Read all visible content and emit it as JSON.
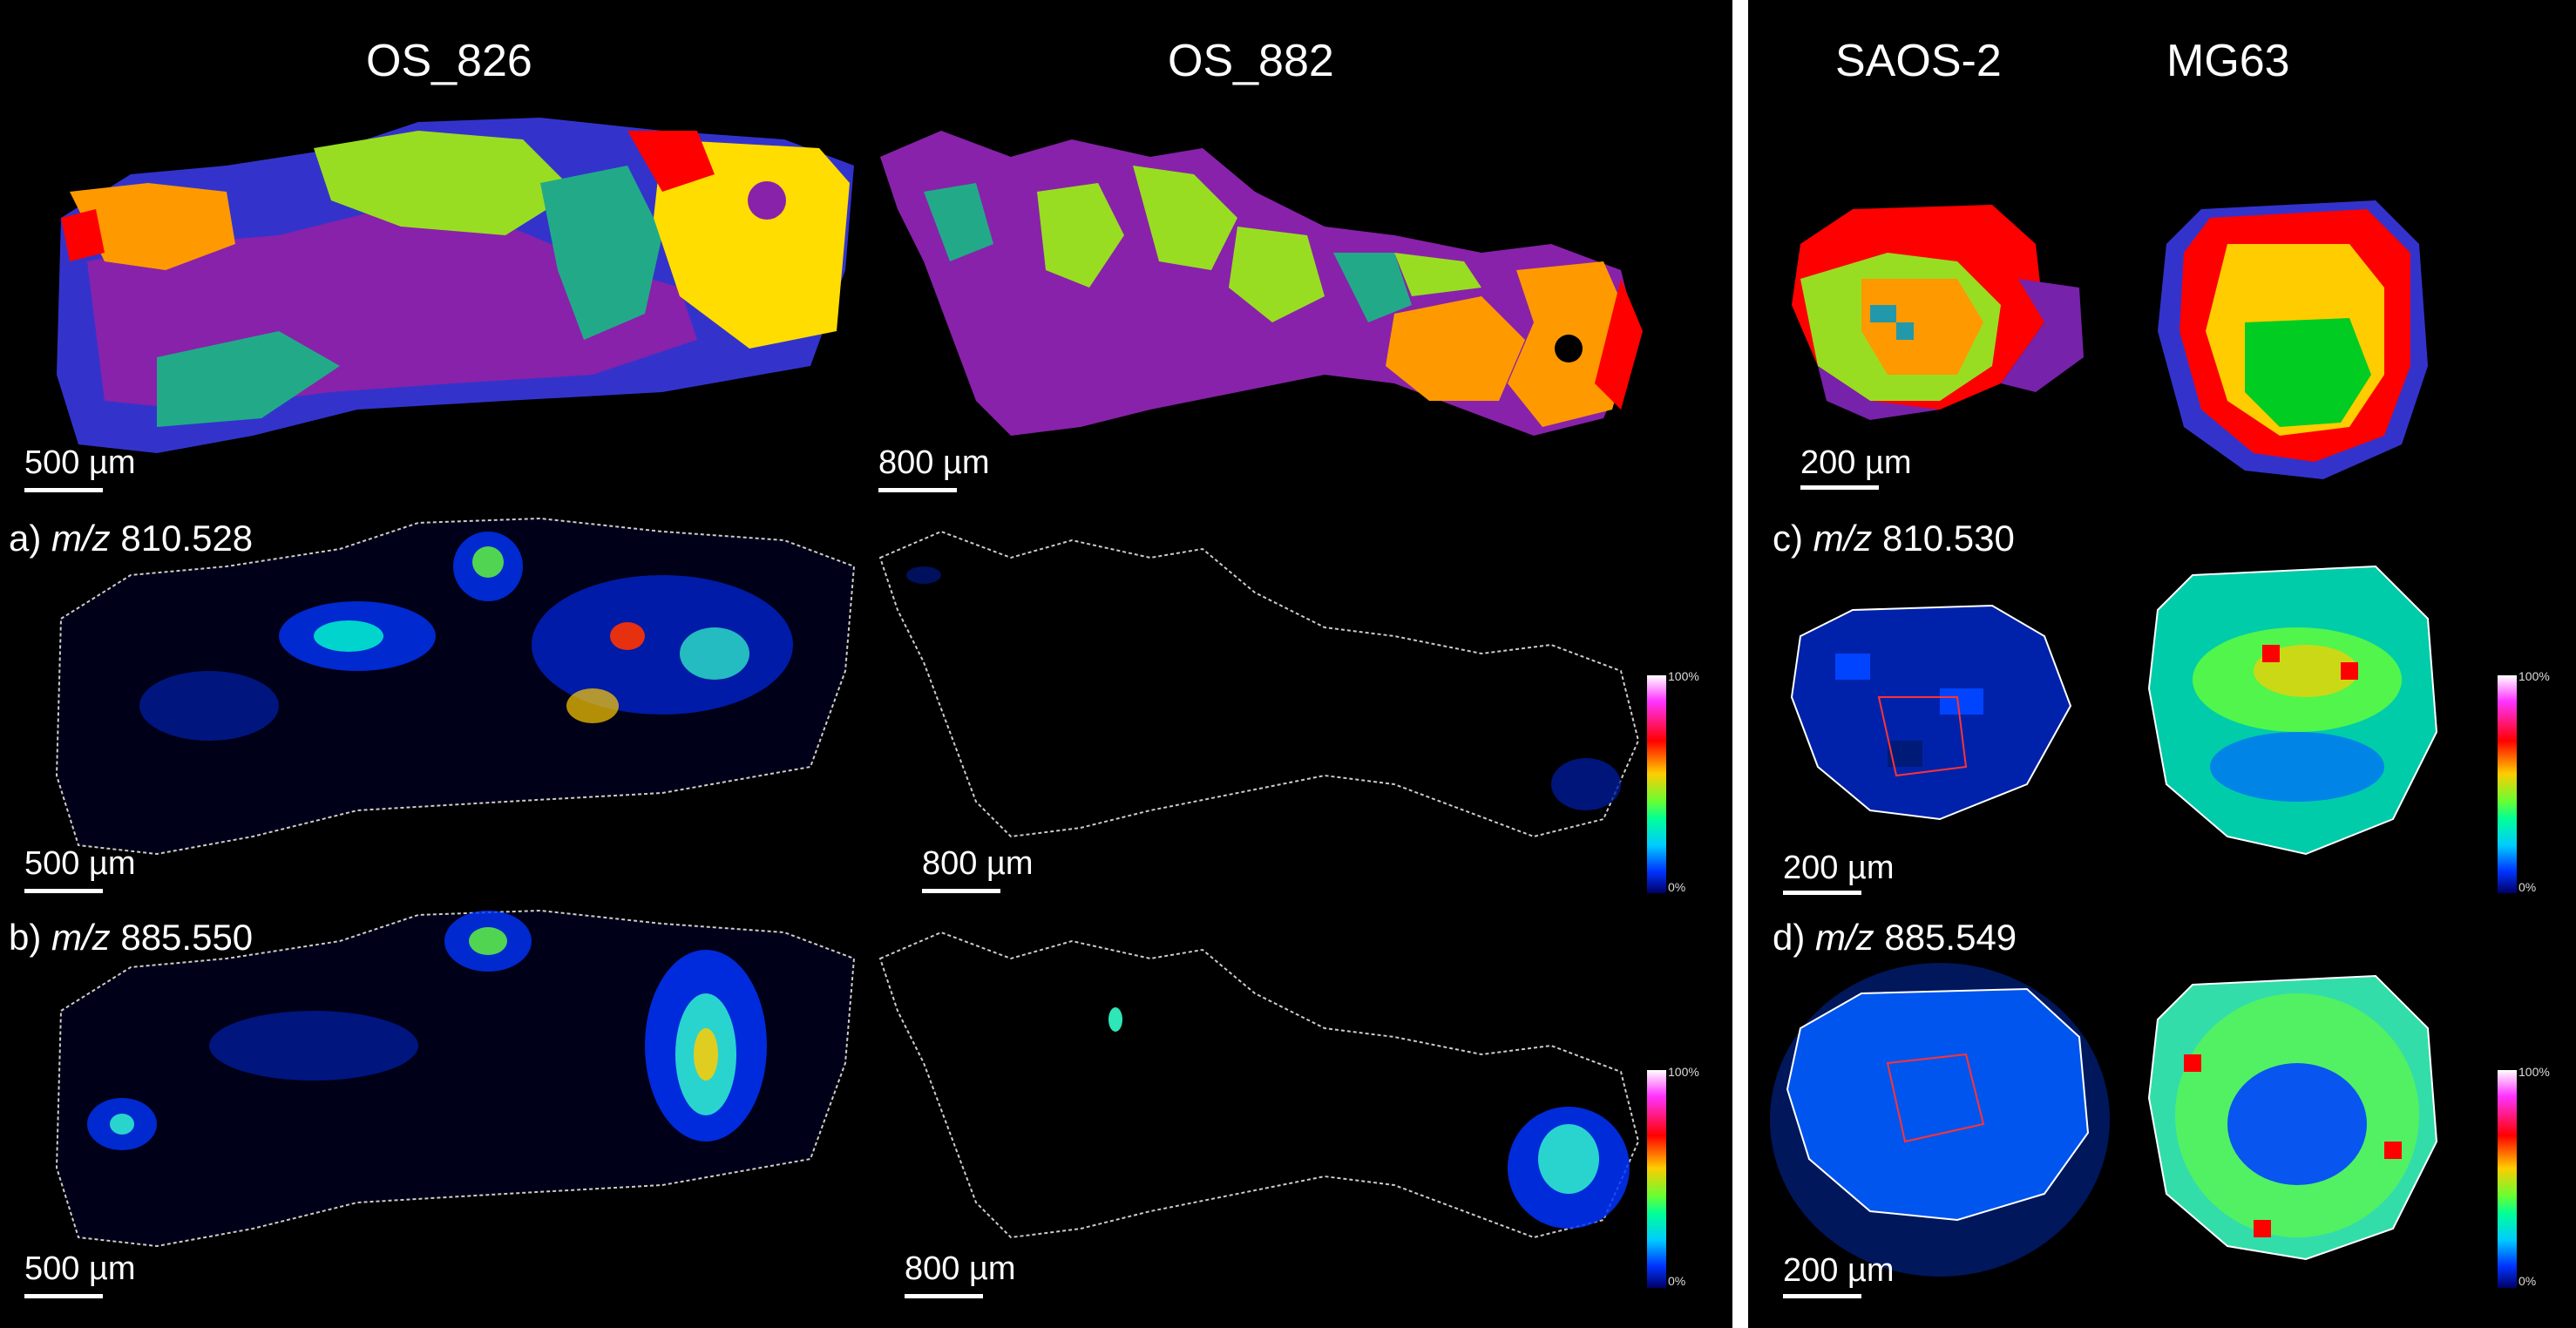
{
  "columns": {
    "os826": "OS_826",
    "os882": "OS_882",
    "saos2": "SAOS-2",
    "mg63": "MG63"
  },
  "rows": {
    "a": {
      "prefix": "a) ",
      "mz": "m/z",
      "value": " 810.528"
    },
    "b": {
      "prefix": "b) ",
      "mz": "m/z",
      "value": " 885.550"
    },
    "c": {
      "prefix": "c) ",
      "mz": "m/z",
      "value": " 810.530"
    },
    "d": {
      "prefix": "d) ",
      "mz": "m/z",
      "value": " 885.549"
    }
  },
  "scalebars": {
    "s500": "500 µm",
    "s800": "800 µm",
    "s200": "200 µm"
  },
  "colorbar": {
    "max": "100%",
    "min": "0%"
  },
  "cluster_colors": [
    "#ff0000",
    "#ff9900",
    "#ffdd00",
    "#99dd22",
    "#22aa88",
    "#8822aa",
    "#3333cc",
    "#00cc22"
  ]
}
